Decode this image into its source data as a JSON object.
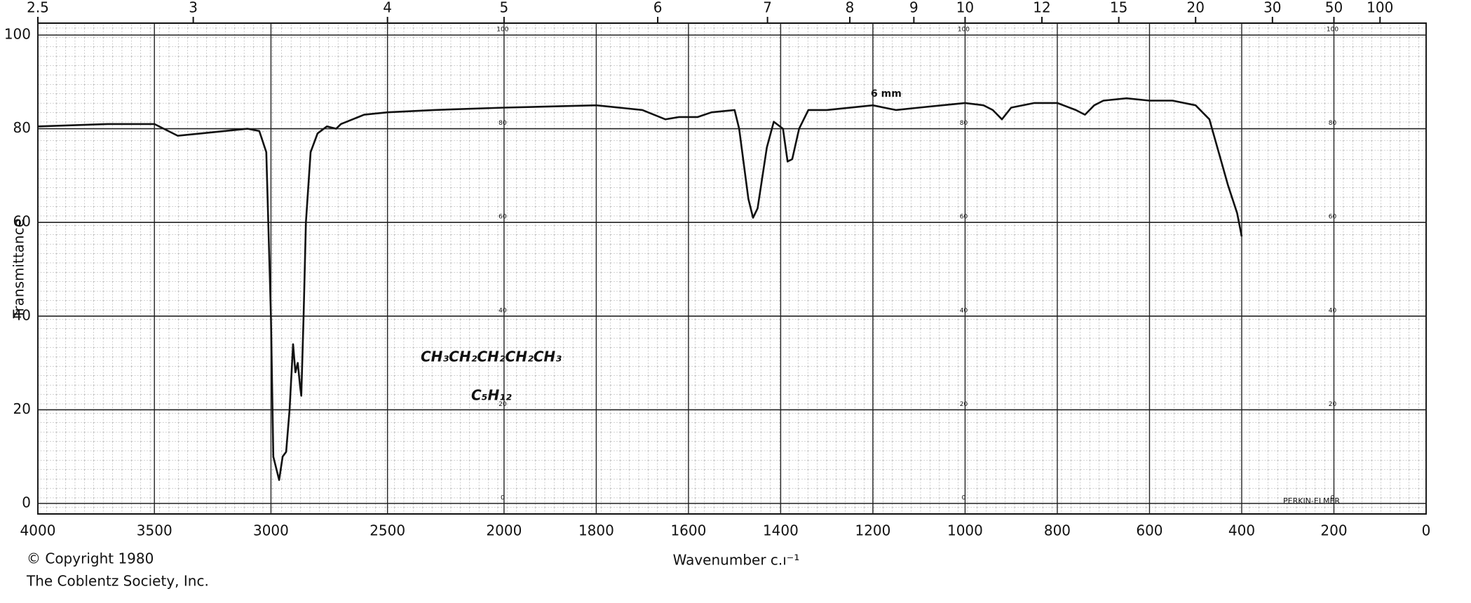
{
  "chart_data": {
    "type": "line",
    "x_label": "Wavenumber c.ı⁻¹",
    "y_label": "Transmittance",
    "annotations": [
      "© Copyright 1980",
      "The Coblentz Society, Inc.",
      "6 mm",
      "CH₃CH₂CH₂CH₂CH₃",
      "C₅H₁₂",
      "PERKIN-ELMER"
    ],
    "xlim": [
      4000,
      0
    ],
    "xscale_break": 2000,
    "xticks": [
      4000,
      3500,
      3000,
      2500,
      2000,
      1800,
      1600,
      1400,
      1200,
      1000,
      800,
      600,
      400,
      200,
      0
    ],
    "x2ticks": [
      2.5,
      3,
      4,
      5,
      6,
      7,
      8,
      9,
      10,
      12,
      15,
      20,
      30,
      50,
      100
    ],
    "ylim": [
      0,
      100
    ],
    "yticks": [
      0,
      20,
      40,
      60,
      80,
      100
    ],
    "grid": true,
    "x": [
      4000,
      3700,
      3500,
      3400,
      3300,
      3200,
      3100,
      3050,
      3020,
      3000,
      2990,
      2965,
      2950,
      2935,
      2920,
      2905,
      2895,
      2885,
      2875,
      2870,
      2860,
      2850,
      2830,
      2800,
      2760,
      2720,
      2700,
      2600,
      2500,
      2300,
      2000,
      1800,
      1700,
      1650,
      1620,
      1580,
      1550,
      1500,
      1490,
      1470,
      1460,
      1450,
      1430,
      1415,
      1395,
      1385,
      1375,
      1360,
      1340,
      1300,
      1200,
      1150,
      1100,
      1050,
      1000,
      960,
      940,
      920,
      900,
      850,
      800,
      760,
      740,
      720,
      700,
      650,
      600,
      550,
      500,
      470,
      450,
      430,
      410,
      400
    ],
    "series": [
      {
        "color": "#111111",
        "values": [
          80.5,
          81,
          81,
          78.5,
          79,
          79.5,
          80,
          79.5,
          75,
          40,
          10,
          5,
          10,
          11,
          20,
          34,
          28,
          30,
          25,
          23,
          40,
          60,
          75,
          79,
          80.5,
          80,
          81,
          83,
          83.5,
          84,
          84.5,
          85,
          84,
          82,
          82.5,
          82.5,
          83.5,
          84,
          80,
          65,
          61,
          63,
          76,
          81.5,
          80,
          73,
          73.5,
          80,
          84,
          84,
          85,
          84,
          84.5,
          85,
          85.5,
          85,
          84,
          82,
          84.5,
          85.5,
          85.5,
          84,
          83,
          85,
          86,
          86.5,
          86,
          86,
          85,
          82,
          75,
          68,
          62,
          57
        ]
      }
    ]
  }
}
